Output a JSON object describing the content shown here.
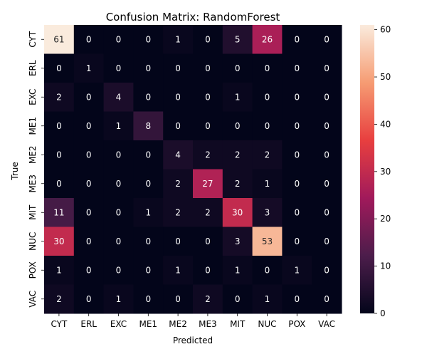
{
  "chart_data": {
    "type": "heatmap",
    "title": "Confusion Matrix: RandomForest",
    "xlabel": "Predicted",
    "ylabel": "True",
    "x_categories": [
      "CYT",
      "ERL",
      "EXC",
      "ME1",
      "ME2",
      "ME3",
      "MIT",
      "NUC",
      "POX",
      "VAC"
    ],
    "y_categories": [
      "CYT",
      "ERL",
      "EXC",
      "ME1",
      "ME2",
      "ME3",
      "MIT",
      "NUC",
      "POX",
      "VAC"
    ],
    "values": [
      [
        61,
        0,
        0,
        0,
        1,
        0,
        5,
        26,
        0,
        0
      ],
      [
        0,
        1,
        0,
        0,
        0,
        0,
        0,
        0,
        0,
        0
      ],
      [
        2,
        0,
        4,
        0,
        0,
        0,
        1,
        0,
        0,
        0
      ],
      [
        0,
        0,
        1,
        8,
        0,
        0,
        0,
        0,
        0,
        0
      ],
      [
        0,
        0,
        0,
        0,
        4,
        2,
        2,
        2,
        0,
        0
      ],
      [
        0,
        0,
        0,
        0,
        2,
        27,
        2,
        1,
        0,
        0
      ],
      [
        11,
        0,
        0,
        1,
        2,
        2,
        30,
        3,
        0,
        0
      ],
      [
        30,
        0,
        0,
        0,
        0,
        0,
        3,
        53,
        0,
        0
      ],
      [
        1,
        0,
        0,
        0,
        1,
        0,
        1,
        0,
        1,
        0
      ],
      [
        2,
        0,
        1,
        0,
        0,
        2,
        0,
        1,
        0,
        0
      ]
    ],
    "colorbar": {
      "vmin": 0,
      "vmax": 61,
      "ticks": [
        0,
        10,
        20,
        30,
        40,
        50,
        60
      ],
      "colormap": "rocket",
      "color_stops": [
        "#03051a",
        "#4c1d4b",
        "#a11a5b",
        "#e83f3f",
        "#f69c73",
        "#faebdd"
      ]
    }
  }
}
